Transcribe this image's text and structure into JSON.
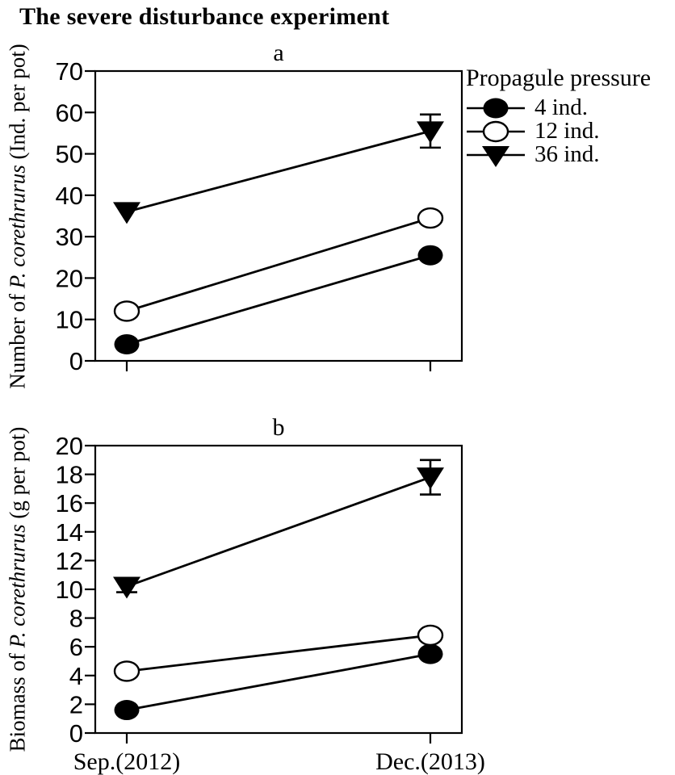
{
  "title": "The severe disturbance experiment",
  "colors": {
    "foreground": "#000000",
    "background": "#ffffff"
  },
  "legend": {
    "title": "Propagule pressure",
    "items": [
      {
        "label": "4 ind.",
        "marker": "filled-circle"
      },
      {
        "label": "12 ind.",
        "marker": "open-circle"
      },
      {
        "label": "36 ind.",
        "marker": "filled-triangle-down"
      }
    ]
  },
  "chart_data": [
    {
      "panel_label": "a",
      "type": "line",
      "ylabel_prefix": "Number of ",
      "ylabel_italic": "P. corethrurus",
      "ylabel_suffix": " (Ind. per pot)",
      "x": [
        "Sep.(2012)",
        "Dec.(2013)"
      ],
      "show_x_tick_labels": false,
      "ylim": [
        0,
        70
      ],
      "ytick_step": 10,
      "grid": false,
      "series": [
        {
          "name": "4 ind.",
          "marker": "filled-circle",
          "values": [
            4,
            25.5
          ],
          "errors": [
            0,
            0
          ]
        },
        {
          "name": "12 ind.",
          "marker": "open-circle",
          "values": [
            12,
            34.5
          ],
          "errors": [
            0,
            0
          ]
        },
        {
          "name": "36 ind.",
          "marker": "filled-triangle-down",
          "values": [
            36,
            55.5
          ],
          "errors": [
            0,
            4
          ]
        }
      ]
    },
    {
      "panel_label": "b",
      "type": "line",
      "ylabel_prefix": "Biomass of ",
      "ylabel_italic": "P. corethrurus",
      "ylabel_suffix": " (g per pot)",
      "x": [
        "Sep.(2012)",
        "Dec.(2013)"
      ],
      "show_x_tick_labels": true,
      "ylim": [
        0,
        20
      ],
      "ytick_step": 2,
      "grid": false,
      "series": [
        {
          "name": "4 ind.",
          "marker": "filled-circle",
          "values": [
            1.6,
            5.5
          ],
          "errors": [
            0,
            0
          ]
        },
        {
          "name": "12 ind.",
          "marker": "open-circle",
          "values": [
            4.3,
            6.8
          ],
          "errors": [
            0,
            0
          ]
        },
        {
          "name": "36 ind.",
          "marker": "filled-triangle-down",
          "values": [
            10.2,
            17.8
          ],
          "errors": [
            0.4,
            1.2
          ]
        }
      ]
    }
  ]
}
